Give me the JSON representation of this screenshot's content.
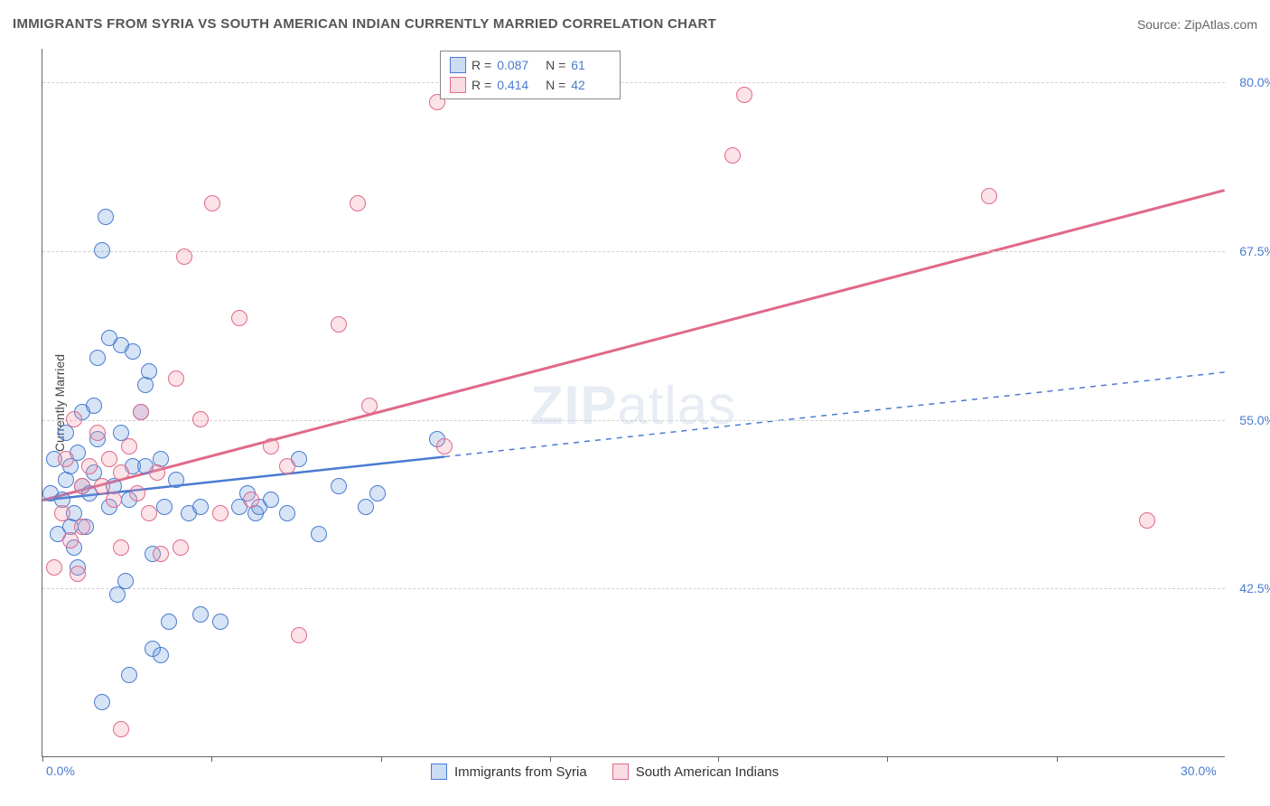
{
  "title": "IMMIGRANTS FROM SYRIA VS SOUTH AMERICAN INDIAN CURRENTLY MARRIED CORRELATION CHART",
  "source": "Source: ZipAtlas.com",
  "watermark": {
    "prefix": "ZIP",
    "suffix": "atlas"
  },
  "chart": {
    "type": "scatter",
    "ylabel": "Currently Married",
    "xlim": [
      0,
      30
    ],
    "ylim": [
      30,
      82.5
    ],
    "yticks": [
      {
        "v": 42.5,
        "l": "42.5%"
      },
      {
        "v": 55.0,
        "l": "55.0%"
      },
      {
        "v": 67.5,
        "l": "67.5%"
      },
      {
        "v": 80.0,
        "l": "80.0%"
      }
    ],
    "xticks_pct": [
      0,
      14.3,
      28.6,
      42.9,
      57.1,
      71.4,
      85.7
    ],
    "xlabels": [
      {
        "x": 0,
        "l": "0.0%"
      },
      {
        "x": 30,
        "l": "30.0%"
      }
    ],
    "grid_color": "#d8d8d8",
    "background_color": "#ffffff",
    "marker_radius": 9,
    "marker_stroke_width": 1.5,
    "marker_fill_opacity": 0.28,
    "series": [
      {
        "name": "Immigrants from Syria",
        "color": "#6b9fe0",
        "stroke": "#4a7bd0",
        "R": "0.087",
        "N": "61",
        "trend": {
          "x1": 0,
          "y1": 49.0,
          "x2": 30,
          "y2": 58.5,
          "solid_until_x": 10.2
        },
        "points": [
          [
            0.2,
            49.5
          ],
          [
            0.3,
            52.0
          ],
          [
            0.4,
            46.5
          ],
          [
            0.5,
            49.0
          ],
          [
            0.6,
            50.5
          ],
          [
            0.6,
            54.0
          ],
          [
            0.7,
            47.0
          ],
          [
            0.7,
            51.5
          ],
          [
            0.8,
            45.5
          ],
          [
            0.8,
            48.0
          ],
          [
            0.9,
            52.5
          ],
          [
            0.9,
            44.0
          ],
          [
            1.0,
            50.0
          ],
          [
            1.0,
            55.5
          ],
          [
            1.1,
            47.0
          ],
          [
            1.2,
            49.5
          ],
          [
            1.3,
            51.0
          ],
          [
            1.3,
            56.0
          ],
          [
            1.4,
            59.5
          ],
          [
            1.5,
            67.5
          ],
          [
            1.6,
            70.0
          ],
          [
            1.4,
            53.5
          ],
          [
            1.7,
            61.0
          ],
          [
            1.7,
            48.5
          ],
          [
            1.8,
            50.0
          ],
          [
            1.9,
            42.0
          ],
          [
            2.0,
            54.0
          ],
          [
            2.0,
            60.5
          ],
          [
            2.1,
            43.0
          ],
          [
            2.2,
            49.0
          ],
          [
            2.3,
            51.5
          ],
          [
            2.3,
            60.0
          ],
          [
            2.5,
            55.5
          ],
          [
            2.6,
            57.5
          ],
          [
            2.7,
            58.5
          ],
          [
            2.6,
            51.5
          ],
          [
            2.8,
            38.0
          ],
          [
            3.0,
            37.5
          ],
          [
            3.0,
            52.0
          ],
          [
            3.1,
            48.5
          ],
          [
            3.2,
            40.0
          ],
          [
            3.4,
            50.5
          ],
          [
            3.7,
            48.0
          ],
          [
            4.0,
            40.5
          ],
          [
            4.0,
            48.5
          ],
          [
            4.5,
            40.0
          ],
          [
            5.0,
            48.5
          ],
          [
            5.2,
            49.5
          ],
          [
            5.4,
            48.0
          ],
          [
            5.5,
            48.5
          ],
          [
            5.8,
            49.0
          ],
          [
            6.2,
            48.0
          ],
          [
            6.5,
            52.0
          ],
          [
            7.0,
            46.5
          ],
          [
            7.5,
            50.0
          ],
          [
            8.2,
            48.5
          ],
          [
            8.5,
            49.5
          ],
          [
            1.5,
            34.0
          ],
          [
            2.2,
            36.0
          ],
          [
            2.8,
            45.0
          ],
          [
            10.0,
            53.5
          ]
        ]
      },
      {
        "name": "South American Indians",
        "color": "#f09aad",
        "stroke": "#e06989",
        "R": "0.414",
        "N": "42",
        "trend": {
          "x1": 0,
          "y1": 49.0,
          "x2": 30,
          "y2": 72.0,
          "solid_until_x": 30
        },
        "points": [
          [
            0.3,
            44.0
          ],
          [
            0.5,
            48.0
          ],
          [
            0.6,
            52.0
          ],
          [
            0.7,
            46.0
          ],
          [
            0.8,
            55.0
          ],
          [
            0.9,
            43.5
          ],
          [
            1.0,
            50.0
          ],
          [
            1.0,
            47.0
          ],
          [
            1.2,
            51.5
          ],
          [
            1.4,
            54.0
          ],
          [
            1.5,
            50.0
          ],
          [
            1.7,
            52.0
          ],
          [
            1.8,
            49.0
          ],
          [
            2.0,
            45.5
          ],
          [
            2.0,
            51.0
          ],
          [
            2.2,
            53.0
          ],
          [
            2.4,
            49.5
          ],
          [
            2.5,
            55.5
          ],
          [
            2.7,
            48.0
          ],
          [
            2.9,
            51.0
          ],
          [
            3.0,
            45.0
          ],
          [
            3.4,
            58.0
          ],
          [
            3.6,
            67.0
          ],
          [
            4.0,
            55.0
          ],
          [
            4.3,
            71.0
          ],
          [
            5.0,
            62.5
          ],
          [
            5.3,
            49.0
          ],
          [
            5.8,
            53.0
          ],
          [
            6.2,
            51.5
          ],
          [
            6.5,
            39.0
          ],
          [
            7.5,
            62.0
          ],
          [
            8.0,
            71.0
          ],
          [
            8.3,
            56.0
          ],
          [
            10.0,
            78.5
          ],
          [
            10.2,
            53.0
          ],
          [
            2.0,
            32.0
          ],
          [
            3.5,
            45.5
          ],
          [
            17.5,
            74.5
          ],
          [
            17.8,
            79.0
          ],
          [
            24.0,
            71.5
          ],
          [
            28.0,
            47.5
          ],
          [
            4.5,
            48.0
          ]
        ]
      }
    ]
  }
}
